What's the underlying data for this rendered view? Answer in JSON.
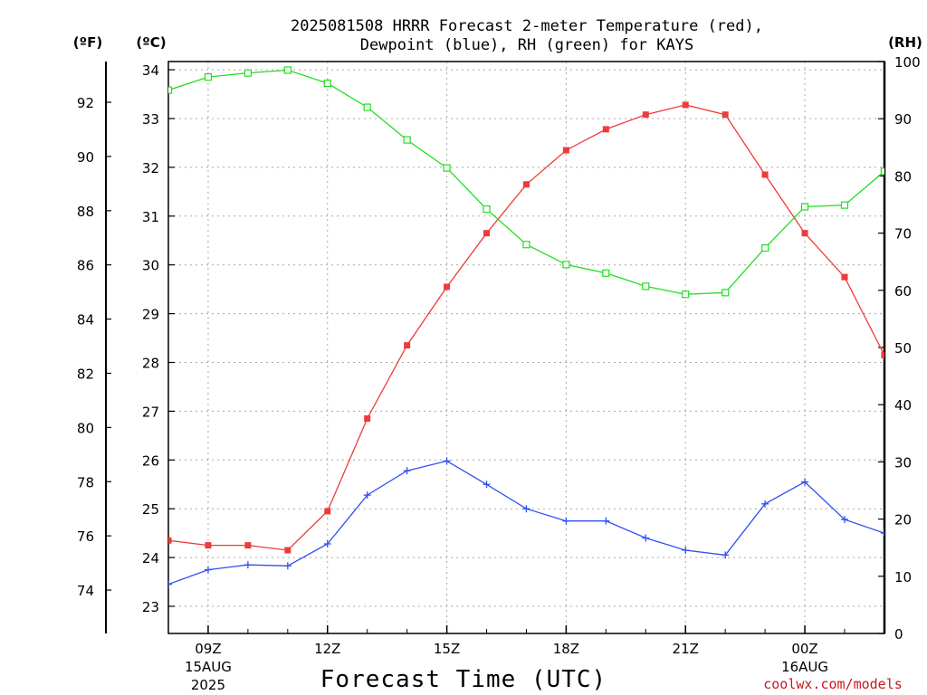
{
  "chart_data": {
    "type": "line",
    "title": "2025081508 HRRR Forecast 2-meter Temperature (red),",
    "subtitle": "Dewpoint (blue), RH (green) for KAYS",
    "xlabel": "Forecast Time (UTC)",
    "credit": "coolwx.com/models",
    "units": {
      "fahrenheit": "(ºF)",
      "celsius": "(ºC)",
      "rh": "(RH)"
    },
    "x_hours": [
      8,
      9,
      10,
      11,
      12,
      13,
      14,
      15,
      16,
      17,
      18,
      19,
      20,
      21,
      22,
      23,
      24,
      25,
      26
    ],
    "x_ticks": [
      {
        "hour": 9,
        "label": "09Z",
        "sub1": "15AUG",
        "sub2": "2025"
      },
      {
        "hour": 12,
        "label": "12Z",
        "sub1": "",
        "sub2": ""
      },
      {
        "hour": 15,
        "label": "15Z",
        "sub1": "",
        "sub2": ""
      },
      {
        "hour": 18,
        "label": "18Z",
        "sub1": "",
        "sub2": ""
      },
      {
        "hour": 21,
        "label": "21Z",
        "sub1": "",
        "sub2": ""
      },
      {
        "hour": 24,
        "label": "00Z",
        "sub1": "16AUG",
        "sub2": ""
      }
    ],
    "left_axis_c": {
      "ticks": [
        23,
        24,
        25,
        26,
        27,
        28,
        29,
        30,
        31,
        32,
        33,
        34
      ]
    },
    "left_axis_f": {
      "ticks": [
        74,
        76,
        78,
        80,
        82,
        84,
        86,
        88,
        90,
        92
      ]
    },
    "right_axis_rh": {
      "range": [
        0,
        100
      ],
      "ticks": [
        0,
        10,
        20,
        30,
        40,
        50,
        60,
        70,
        80,
        90,
        100
      ]
    },
    "series": [
      {
        "name": "Temperature",
        "axis": "celsius",
        "color": "#ee3a3a",
        "marker": "filled-square",
        "values": [
          24.35,
          24.25,
          24.25,
          24.15,
          24.95,
          26.85,
          28.35,
          29.55,
          30.65,
          31.65,
          32.35,
          32.78,
          33.08,
          33.28,
          33.08,
          31.85,
          30.65,
          29.75,
          28.15
        ]
      },
      {
        "name": "Dewpoint",
        "axis": "celsius",
        "color": "#3050ee",
        "marker": "plus",
        "values": [
          23.45,
          23.75,
          23.85,
          23.83,
          24.28,
          25.28,
          25.78,
          25.98,
          25.5,
          25.0,
          24.75,
          24.75,
          24.4,
          24.15,
          24.05,
          25.1,
          25.55,
          24.78,
          24.5
        ]
      },
      {
        "name": "RH",
        "axis": "rh",
        "color": "#22dd22",
        "marker": "open-square",
        "values": [
          95.0,
          97.3,
          98.0,
          98.5,
          96.2,
          92.0,
          86.3,
          81.4,
          74.2,
          68.0,
          64.5,
          63.0,
          60.7,
          59.3,
          59.6,
          67.4,
          74.6,
          74.9,
          80.8
        ]
      }
    ]
  }
}
